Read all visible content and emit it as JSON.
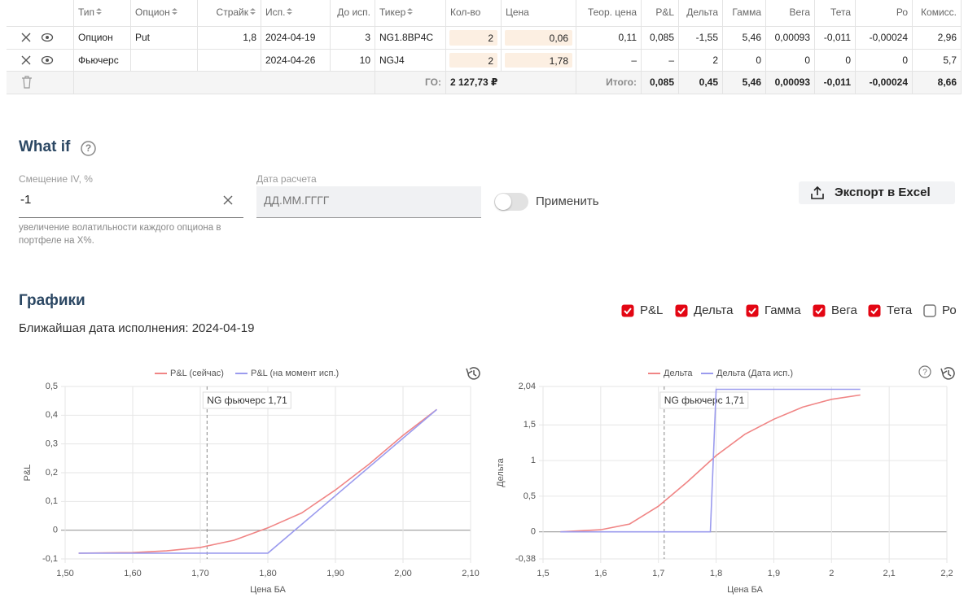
{
  "table": {
    "columns": [
      {
        "label": "Тип",
        "sortable": true
      },
      {
        "label": "Опцион",
        "sortable": true
      },
      {
        "label": "Страйк",
        "sortable": true
      },
      {
        "label": "Исп.",
        "sortable": true
      },
      {
        "label": "До исп.",
        "sortable": false
      },
      {
        "label": "Тикер",
        "sortable": true
      },
      {
        "label": "Кол-во",
        "sortable": false
      },
      {
        "label": "Цена",
        "sortable": false
      },
      {
        "label": "Теор. цена",
        "sortable": false
      },
      {
        "label": "P&L",
        "sortable": false
      },
      {
        "label": "Дельта",
        "sortable": false
      },
      {
        "label": "Гамма",
        "sortable": false
      },
      {
        "label": "Вега",
        "sortable": false
      },
      {
        "label": "Тета",
        "sortable": false
      },
      {
        "label": "Ро",
        "sortable": false
      },
      {
        "label": "Комисс.",
        "sortable": false
      }
    ],
    "rows": [
      [
        "Опцион",
        "Put",
        "1,8",
        "2024-04-19",
        "3",
        "NG1.8BP4C",
        "2",
        "0,06",
        "0,11",
        "0,085",
        "-1,55",
        "5,46",
        "0,00093",
        "-0,011",
        "-0,00024",
        "2,96"
      ],
      [
        "Фьючерс",
        null,
        null,
        "2024-04-26",
        "10",
        "NGJ4",
        "2",
        "1,78",
        "–",
        "–",
        "2",
        "0",
        "0",
        "0",
        "0",
        "5,7"
      ]
    ],
    "totals": {
      "margin_label": "ГО:",
      "margin": "2 127,73 ₽",
      "total_label": "Итого:",
      "values": [
        "0,085",
        "0,45",
        "5,46",
        "0,00093",
        "-0,011",
        "-0,00024",
        "8,66"
      ]
    }
  },
  "what_if": {
    "title": "What if",
    "iv_label": "Смещение IV, %",
    "iv_value": "-1",
    "iv_help": "увеличение волатильности каждого опциона в портфеле на X%.",
    "date_label": "Дата расчета",
    "date_placeholder": "ДД.ММ.ГГГГ",
    "apply_label": "Применить",
    "apply_on": false,
    "export_label": "Экспорт в Excel"
  },
  "charts": {
    "title": "Графики",
    "subtitle": "Ближайшая дата исполнения: 2024-04-19",
    "toggles": [
      {
        "label": "P&L",
        "checked": true
      },
      {
        "label": "Дельта",
        "checked": true
      },
      {
        "label": "Гамма",
        "checked": true
      },
      {
        "label": "Вега",
        "checked": true
      },
      {
        "label": "Тета",
        "checked": true
      },
      {
        "label": "Ро",
        "checked": false
      }
    ],
    "plots": [
      {
        "type": "line",
        "x_label": "Цена БА",
        "y_label": "P&L",
        "xlim": [
          1.5,
          2.1
        ],
        "xticks": [
          {
            "value": 1.5,
            "label": "1,50"
          },
          {
            "value": 1.6,
            "label": "1,60"
          },
          {
            "value": 1.7,
            "label": "1,70"
          },
          {
            "value": 1.8,
            "label": "1,80"
          },
          {
            "value": 1.9,
            "label": "1,90"
          },
          {
            "value": 2.0,
            "label": "2,00"
          },
          {
            "value": 2.1,
            "label": "2,10"
          }
        ],
        "ylim": [
          -0.1,
          0.5
        ],
        "yticks": [
          {
            "value": -0.1,
            "label": "-0,1"
          },
          0,
          {
            "value": 0.1,
            "label": "0,1"
          },
          {
            "value": 0.2,
            "label": "0,2"
          },
          {
            "value": 0.3,
            "label": "0,3"
          },
          {
            "value": 0.4,
            "label": "0,4"
          },
          {
            "value": 0.5,
            "label": "0,5"
          }
        ],
        "grid": true,
        "marker": {
          "x": 1.71,
          "label": "NG фьючерс 1,71"
        },
        "series": [
          {
            "name": "P&L (сейчас)",
            "color": "#f08585",
            "x": [
              1.52,
              1.6,
              1.65,
              1.7,
              1.75,
              1.8,
              1.85,
              1.9,
              1.95,
              2.0,
              2.05
            ],
            "y": [
              -0.08,
              -0.078,
              -0.072,
              -0.06,
              -0.035,
              0.008,
              0.06,
              0.14,
              0.23,
              0.33,
              0.42
            ]
          },
          {
            "name": "P&L (на момент исп.)",
            "color": "#9b9bee",
            "x": [
              1.52,
              1.8,
              2.05
            ],
            "y": [
              -0.08,
              -0.08,
              0.42
            ]
          }
        ]
      },
      {
        "type": "line",
        "x_label": "Цена БА",
        "y_label": "Дельта",
        "xlim": [
          1.5,
          2.2
        ],
        "xticks": [
          {
            "value": 1.5,
            "label": "1,5"
          },
          {
            "value": 1.6,
            "label": "1,6"
          },
          {
            "value": 1.7,
            "label": "1,7"
          },
          {
            "value": 1.8,
            "label": "1,8"
          },
          {
            "value": 1.9,
            "label": "1,9"
          },
          {
            "value": 2.0,
            "label": "2"
          },
          {
            "value": 2.1,
            "label": "2,1"
          },
          {
            "value": 2.2,
            "label": "2,2"
          }
        ],
        "ylim": [
          -0.38,
          2.04
        ],
        "yticks": [
          {
            "value": -0.38,
            "label": "-0,38"
          },
          0,
          {
            "value": 0.5,
            "label": "0,5"
          },
          1,
          {
            "value": 1.5,
            "label": "1,5"
          },
          {
            "value": 2.04,
            "label": "2,04"
          }
        ],
        "grid": true,
        "marker": {
          "x": 1.71,
          "label": "NG фьючерс 1,71"
        },
        "series": [
          {
            "name": "Дельта",
            "color": "#f08585",
            "x": [
              1.53,
              1.6,
              1.65,
              1.7,
              1.75,
              1.8,
              1.85,
              1.9,
              1.95,
              2.0,
              2.05
            ],
            "y": [
              0,
              0.03,
              0.11,
              0.36,
              0.7,
              1.07,
              1.37,
              1.58,
              1.75,
              1.86,
              1.92
            ]
          },
          {
            "name": "Дельта (Дата исп.)",
            "color": "#9b9bee",
            "x": [
              1.53,
              1.79,
              1.8,
              2.05
            ],
            "y": [
              0,
              0,
              2,
              2
            ]
          }
        ]
      }
    ]
  }
}
